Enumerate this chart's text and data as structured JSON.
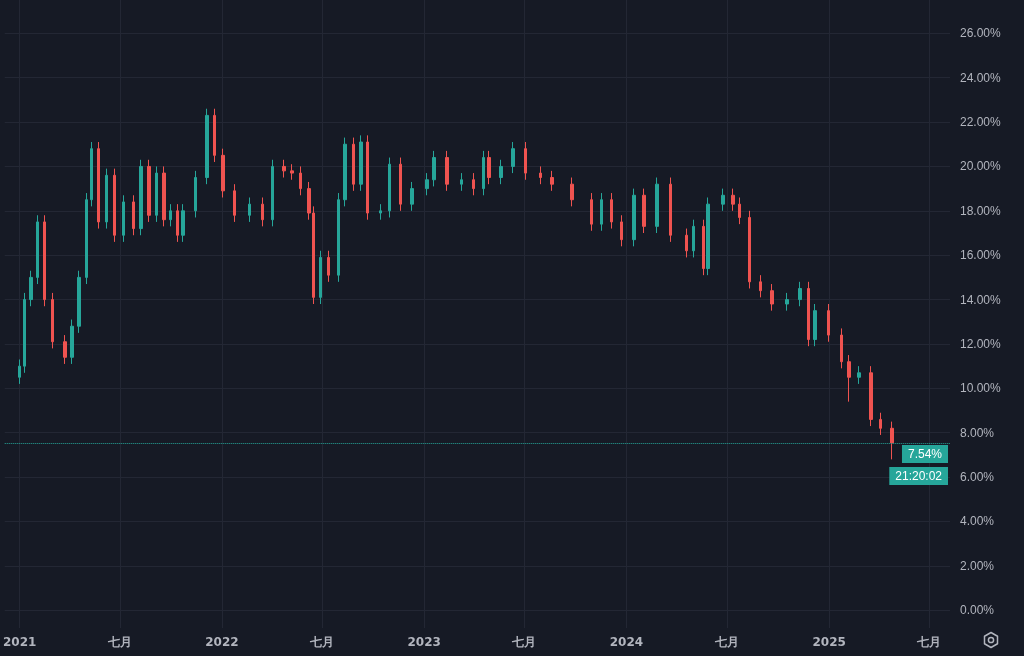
{
  "chart_data": {
    "type": "candlestick",
    "x": [
      "2021-01-01",
      "2021-01-10",
      "2021-01-21",
      "2021-02-02",
      "2021-02-15",
      "2021-03-01",
      "2021-03-24",
      "2021-04-05",
      "2021-04-18",
      "2021-05-02",
      "2021-05-11",
      "2021-05-23",
      "2021-06-07",
      "2021-06-21",
      "2021-07-07",
      "2021-07-25",
      "2021-08-08",
      "2021-08-22",
      "2021-09-05",
      "2021-09-18",
      "2021-09-30",
      "2021-10-13",
      "2021-10-23",
      "2021-11-14",
      "2021-12-05",
      "2021-12-19",
      "2022-01-03",
      "2022-01-24",
      "2022-02-20",
      "2022-03-15",
      "2022-04-02",
      "2022-04-23",
      "2022-05-07",
      "2022-05-23",
      "2022-06-07",
      "2022-06-15",
      "2022-06-28",
      "2022-07-12",
      "2022-07-30",
      "2022-08-11",
      "2022-08-26",
      "2022-09-09",
      "2022-09-21",
      "2022-10-14",
      "2022-10-30",
      "2022-11-19",
      "2022-12-10",
      "2023-01-06",
      "2023-01-19",
      "2023-02-11",
      "2023-03-09",
      "2023-03-31",
      "2023-04-18",
      "2023-04-28",
      "2023-05-20",
      "2023-06-10",
      "2023-07-03",
      "2023-07-30",
      "2023-08-20",
      "2023-09-25",
      "2023-10-30",
      "2023-11-17",
      "2023-12-05",
      "2023-12-23",
      "2024-01-15",
      "2024-02-02",
      "2024-02-25",
      "2024-03-21",
      "2024-04-18",
      "2024-05-01",
      "2024-05-19",
      "2024-05-27",
      "2024-06-23",
      "2024-07-11",
      "2024-07-23",
      "2024-08-10",
      "2024-08-30",
      "2024-09-20",
      "2024-10-17",
      "2024-11-09",
      "2024-11-25",
      "2024-12-06",
      "2024-12-31",
      "2025-01-23",
      "2025-02-06",
      "2025-02-24",
      "2025-03-17",
      "2025-04-04",
      "2025-04-24"
    ],
    "ohlc": [
      [
        10.5,
        11.3,
        10.2,
        11.0
      ],
      [
        11.0,
        14.3,
        10.7,
        14.0
      ],
      [
        14.0,
        15.3,
        13.7,
        15.0
      ],
      [
        15.0,
        17.8,
        14.7,
        17.5
      ],
      [
        17.5,
        17.8,
        13.7,
        14.0
      ],
      [
        14.0,
        14.3,
        11.8,
        12.1
      ],
      [
        12.1,
        12.4,
        11.1,
        11.4
      ],
      [
        11.4,
        13.1,
        11.1,
        12.8
      ],
      [
        12.8,
        15.3,
        12.5,
        15.0
      ],
      [
        15.0,
        18.8,
        14.7,
        18.5
      ],
      [
        18.5,
        21.1,
        18.2,
        20.8
      ],
      [
        20.8,
        21.1,
        17.2,
        17.5
      ],
      [
        17.5,
        19.9,
        17.2,
        19.6
      ],
      [
        19.6,
        19.9,
        16.6,
        16.9
      ],
      [
        16.9,
        18.7,
        16.6,
        18.4
      ],
      [
        18.4,
        18.7,
        16.9,
        17.2
      ],
      [
        17.2,
        20.3,
        16.9,
        20.0
      ],
      [
        20.0,
        20.3,
        17.5,
        17.8
      ],
      [
        17.8,
        20.0,
        17.5,
        19.7
      ],
      [
        19.7,
        20.0,
        17.3,
        17.6
      ],
      [
        17.6,
        18.3,
        17.3,
        18.0
      ],
      [
        18.0,
        18.3,
        16.6,
        16.9
      ],
      [
        16.9,
        18.3,
        16.6,
        18.0
      ],
      [
        18.0,
        19.8,
        17.7,
        19.5
      ],
      [
        19.5,
        22.6,
        19.2,
        22.3
      ],
      [
        22.3,
        22.6,
        20.2,
        20.5
      ],
      [
        20.5,
        20.8,
        18.6,
        18.9
      ],
      [
        18.9,
        19.2,
        17.5,
        17.8
      ],
      [
        17.8,
        18.6,
        17.5,
        18.3
      ],
      [
        18.3,
        18.6,
        17.3,
        17.6
      ],
      [
        17.6,
        20.3,
        17.3,
        20.0
      ],
      [
        20.0,
        20.3,
        19.5,
        19.8
      ],
      [
        19.8,
        20.1,
        19.4,
        19.7
      ],
      [
        19.7,
        20.0,
        18.7,
        19.0
      ],
      [
        19.0,
        19.3,
        17.6,
        17.9
      ],
      [
        17.9,
        18.2,
        13.8,
        14.1
      ],
      [
        14.1,
        16.2,
        13.8,
        15.9
      ],
      [
        15.9,
        16.2,
        14.8,
        15.1
      ],
      [
        15.1,
        18.8,
        14.8,
        18.5
      ],
      [
        18.5,
        21.3,
        18.2,
        21.0
      ],
      [
        21.0,
        21.3,
        18.9,
        19.2
      ],
      [
        19.2,
        21.4,
        18.9,
        21.1
      ],
      [
        21.1,
        21.4,
        17.6,
        17.9
      ],
      [
        17.9,
        18.3,
        17.6,
        18.0
      ],
      [
        18.0,
        20.4,
        17.7,
        20.1
      ],
      [
        20.1,
        20.4,
        18.0,
        18.3
      ],
      [
        18.3,
        19.3,
        18.0,
        19.0
      ],
      [
        19.0,
        19.7,
        18.7,
        19.4
      ],
      [
        19.4,
        20.7,
        19.1,
        20.4
      ],
      [
        20.4,
        20.7,
        18.9,
        19.2
      ],
      [
        19.2,
        19.7,
        18.9,
        19.4
      ],
      [
        19.4,
        19.7,
        18.7,
        19.0
      ],
      [
        19.0,
        20.7,
        18.7,
        20.4
      ],
      [
        20.4,
        20.7,
        19.2,
        19.5
      ],
      [
        19.5,
        20.3,
        19.2,
        20.0
      ],
      [
        20.0,
        21.1,
        19.7,
        20.8
      ],
      [
        20.8,
        21.1,
        19.4,
        19.7
      ],
      [
        19.7,
        20.0,
        19.2,
        19.5
      ],
      [
        19.5,
        19.8,
        18.9,
        19.2
      ],
      [
        19.2,
        19.5,
        18.2,
        18.5
      ],
      [
        18.5,
        18.8,
        17.1,
        17.4
      ],
      [
        17.4,
        18.8,
        17.1,
        18.5
      ],
      [
        18.5,
        18.8,
        17.2,
        17.5
      ],
      [
        17.5,
        17.8,
        16.4,
        16.7
      ],
      [
        16.7,
        19.0,
        16.4,
        18.7
      ],
      [
        18.7,
        19.0,
        17.0,
        17.3
      ],
      [
        17.3,
        19.5,
        17.0,
        19.2
      ],
      [
        19.2,
        19.5,
        16.6,
        16.9
      ],
      [
        16.9,
        17.2,
        15.9,
        16.2
      ],
      [
        16.2,
        17.6,
        15.9,
        17.3
      ],
      [
        17.3,
        17.6,
        15.1,
        15.4
      ],
      [
        15.4,
        18.6,
        15.1,
        18.3
      ],
      [
        18.3,
        19.0,
        18.0,
        18.7
      ],
      [
        18.7,
        19.0,
        18.0,
        18.3
      ],
      [
        18.3,
        18.6,
        17.4,
        17.7
      ],
      [
        17.7,
        18.0,
        14.5,
        14.8
      ],
      [
        14.8,
        15.1,
        14.1,
        14.4
      ],
      [
        14.4,
        14.7,
        13.5,
        13.8
      ],
      [
        13.8,
        14.3,
        13.5,
        14.0
      ],
      [
        14.0,
        14.8,
        13.7,
        14.5
      ],
      [
        14.5,
        14.8,
        11.9,
        12.2
      ],
      [
        12.2,
        13.8,
        11.9,
        13.5
      ],
      [
        13.5,
        13.8,
        12.1,
        12.4
      ],
      [
        12.4,
        12.7,
        10.9,
        11.2
      ],
      [
        11.2,
        11.5,
        9.4,
        10.5
      ],
      [
        10.5,
        11.0,
        10.2,
        10.7
      ],
      [
        10.7,
        11.0,
        8.3,
        8.6
      ],
      [
        8.6,
        8.9,
        7.9,
        8.2
      ],
      [
        8.2,
        8.5,
        6.8,
        7.54
      ]
    ],
    "colors": [
      "#26a69a",
      "#26a69a",
      "#26a69a",
      "#26a69a",
      "#ef5350",
      "#ef5350",
      "#ef5350",
      "#26a69a",
      "#26a69a",
      "#26a69a",
      "#26a69a",
      "#ef5350",
      "#26a69a",
      "#ef5350",
      "#26a69a",
      "#ef5350",
      "#26a69a",
      "#ef5350",
      "#26a69a",
      "#ef5350",
      "#26a69a",
      "#ef5350",
      "#26a69a",
      "#26a69a",
      "#26a69a",
      "#ef5350",
      "#ef5350",
      "#ef5350",
      "#26a69a",
      "#ef5350",
      "#26a69a",
      "#ef5350",
      "#ef5350",
      "#ef5350",
      "#ef5350",
      "#ef5350",
      "#26a69a",
      "#ef5350",
      "#26a69a",
      "#26a69a",
      "#ef5350",
      "#26a69a",
      "#ef5350",
      "#26a69a",
      "#26a69a",
      "#ef5350",
      "#26a69a",
      "#26a69a",
      "#26a69a",
      "#ef5350",
      "#26a69a",
      "#ef5350",
      "#26a69a",
      "#ef5350",
      "#26a69a",
      "#26a69a",
      "#ef5350",
      "#ef5350",
      "#ef5350",
      "#ef5350",
      "#ef5350",
      "#26a69a",
      "#ef5350",
      "#ef5350",
      "#26a69a",
      "#ef5350",
      "#26a69a",
      "#ef5350",
      "#ef5350",
      "#26a69a",
      "#ef5350",
      "#26a69a",
      "#26a69a",
      "#ef5350",
      "#ef5350",
      "#ef5350",
      "#ef5350",
      "#ef5350",
      "#26a69a",
      "#26a69a",
      "#ef5350",
      "#26a69a",
      "#ef5350",
      "#ef5350",
      "#ef5350",
      "#26a69a",
      "#ef5350",
      "#ef5350",
      "#ef5350"
    ],
    "xlim": [
      "2020-12-05",
      "2025-08-07"
    ],
    "xticks": [
      {
        "value": "2021-01-01",
        "label": "2021"
      },
      {
        "value": "2021-07-01",
        "label": "七月"
      },
      {
        "value": "2022-01-01",
        "label": "2022"
      },
      {
        "value": "2022-07-01",
        "label": "七月"
      },
      {
        "value": "2023-01-01",
        "label": "2023"
      },
      {
        "value": "2023-07-01",
        "label": "七月"
      },
      {
        "value": "2024-01-01",
        "label": "2024"
      },
      {
        "value": "2024-07-01",
        "label": "七月"
      },
      {
        "value": "2025-01-01",
        "label": "2025"
      },
      {
        "value": "2025-07-01",
        "label": "七月"
      }
    ],
    "ylim": [
      -0.8,
      27.5
    ],
    "yticks": [
      {
        "value": 0,
        "label": "0.00%"
      },
      {
        "value": 2,
        "label": "2.00%"
      },
      {
        "value": 4,
        "label": "4.00%"
      },
      {
        "value": 6,
        "label": "6.00%"
      },
      {
        "value": 8,
        "label": "8.00%"
      },
      {
        "value": 10,
        "label": "10.00%"
      },
      {
        "value": 12,
        "label": "12.00%"
      },
      {
        "value": 14,
        "label": "14.00%"
      },
      {
        "value": 16,
        "label": "16.00%"
      },
      {
        "value": 18,
        "label": "18.00%"
      },
      {
        "value": 20,
        "label": "20.00%"
      },
      {
        "value": 22,
        "label": "22.00%"
      },
      {
        "value": 24,
        "label": "24.00%"
      },
      {
        "value": 26,
        "label": "26.00%"
      }
    ],
    "grid": true,
    "ref_lines": [
      {
        "axis": "y",
        "value": 7.54,
        "label": "7.54%",
        "color": "#26a69a",
        "line_style": "dotted"
      }
    ],
    "annotations": [
      "21:20:02"
    ]
  }
}
